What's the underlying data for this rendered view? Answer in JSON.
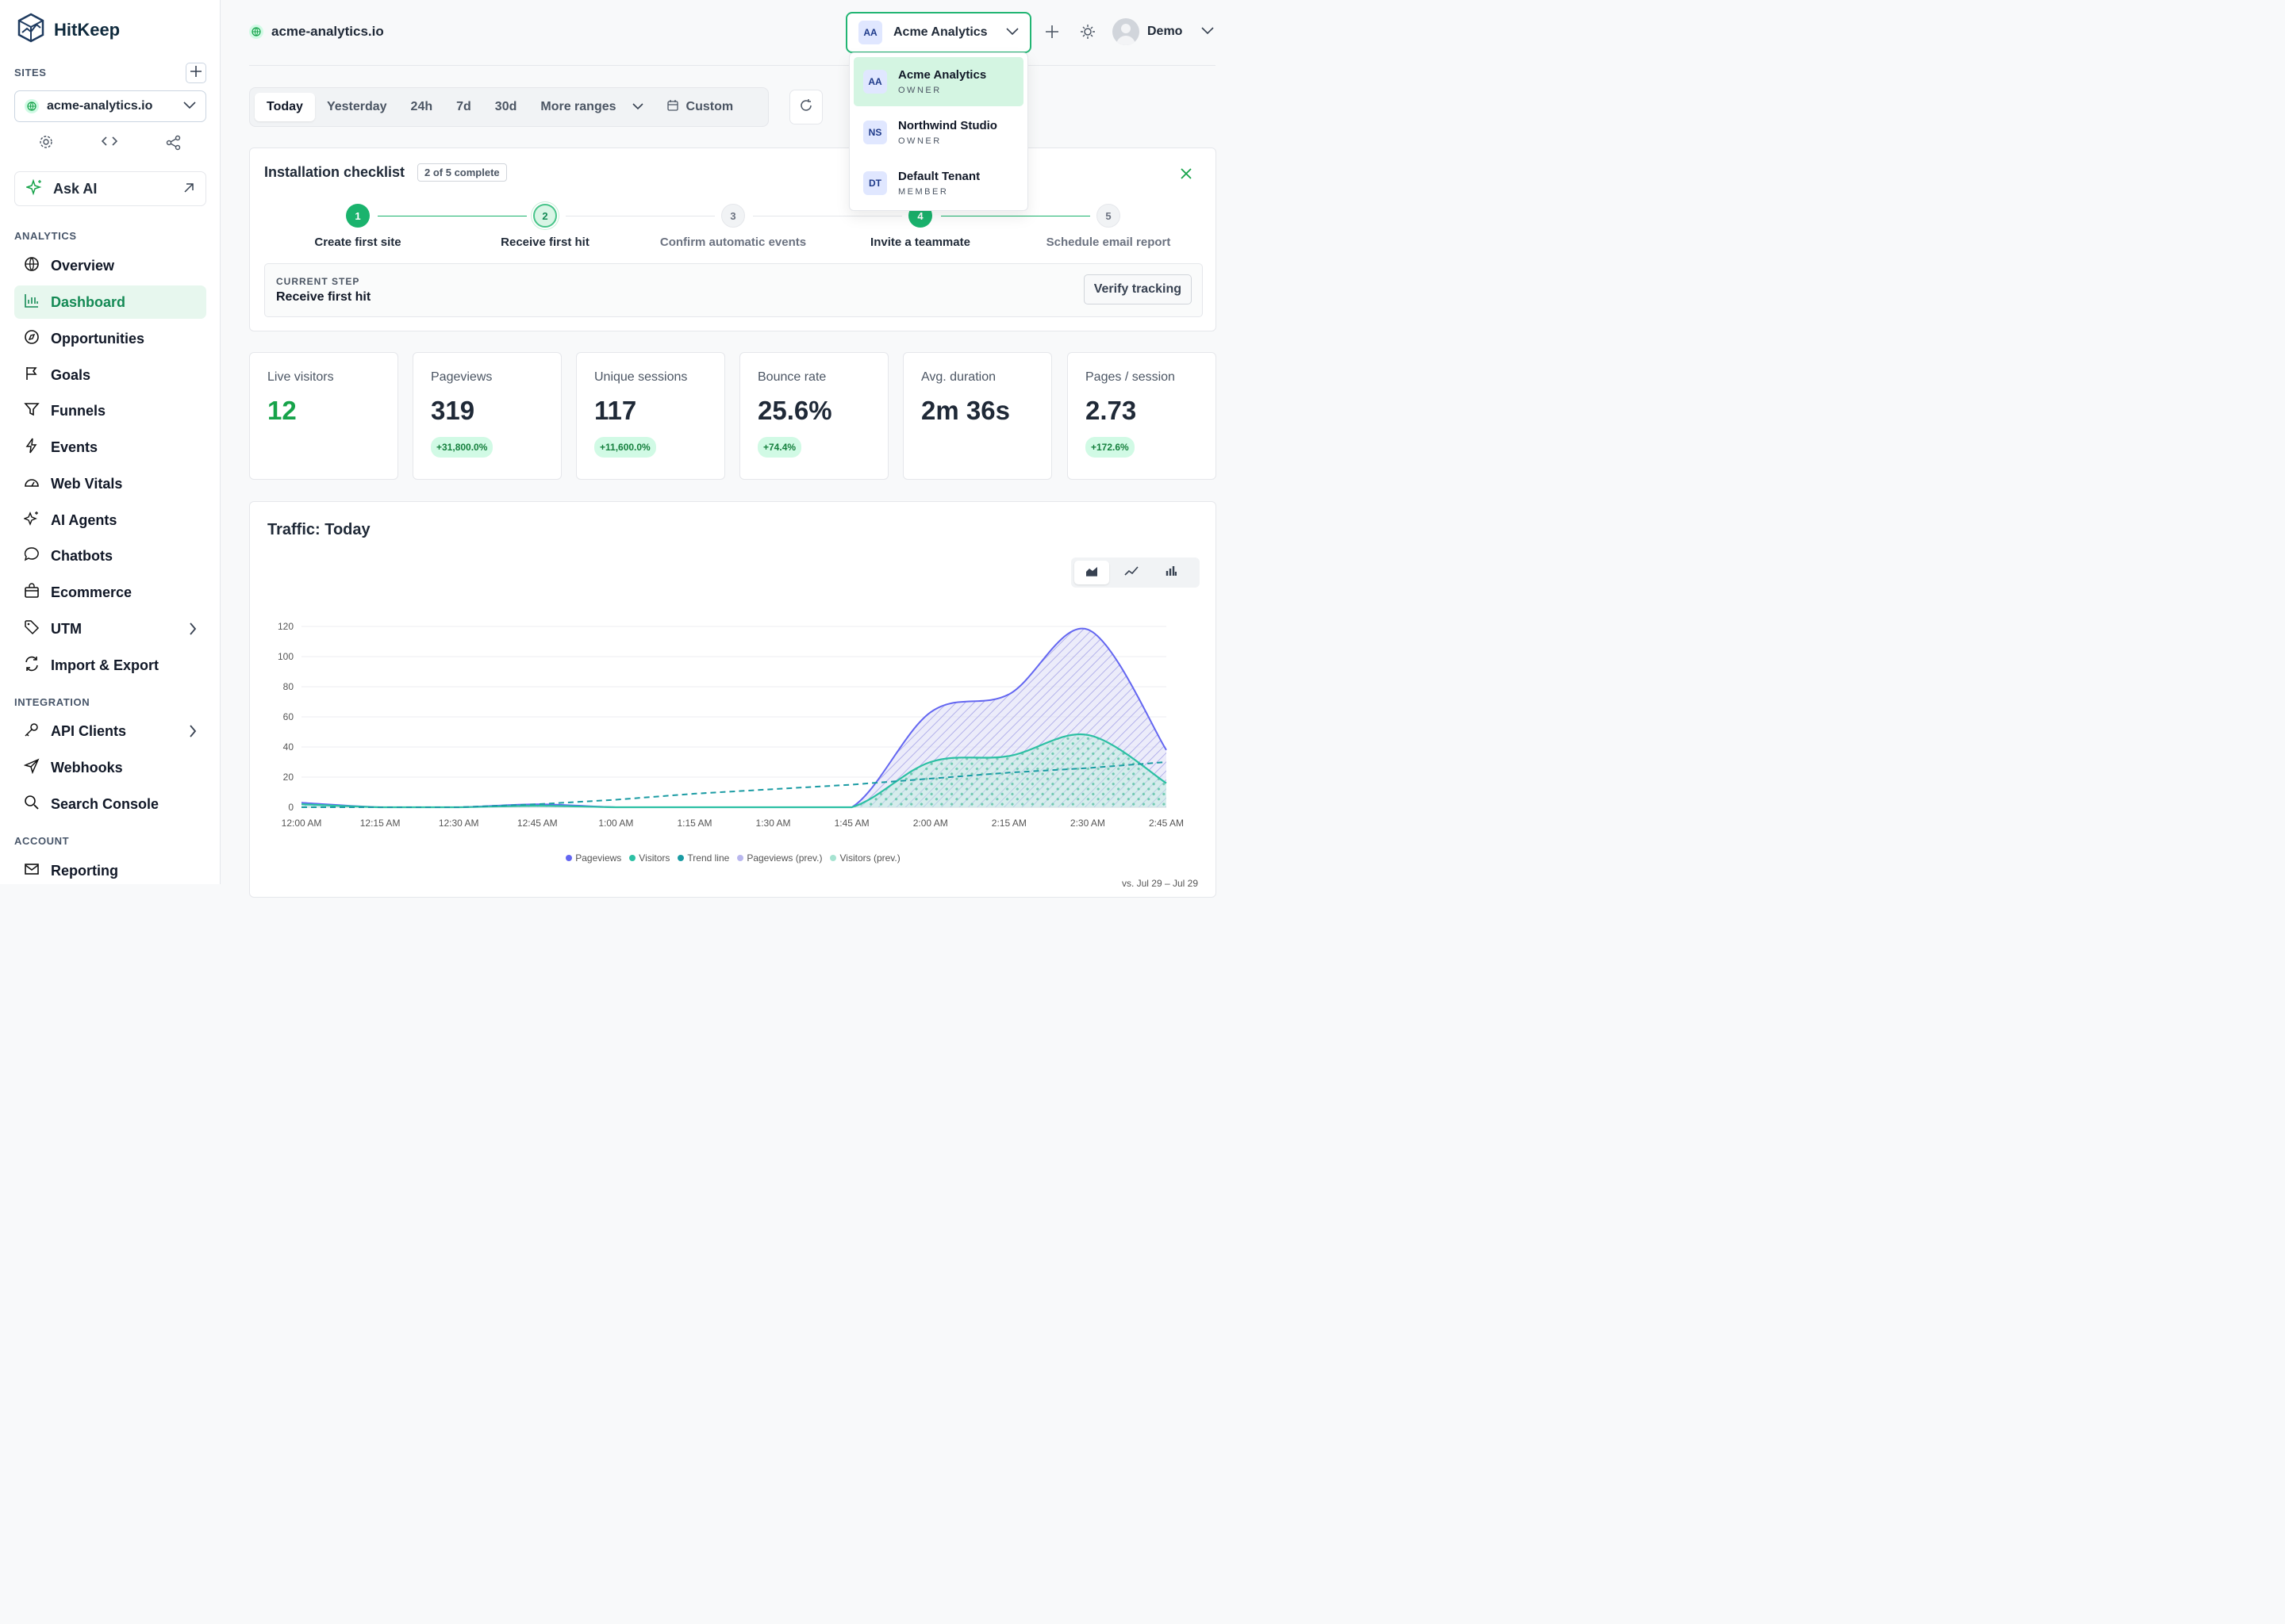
{
  "brand": {
    "name": "HitKeep"
  },
  "sidebar": {
    "sites_label": "SITES",
    "site": "acme-analytics.io",
    "ask_ai": "Ask AI",
    "analytics_label": "ANALYTICS",
    "analytics_items": [
      {
        "label": "Overview",
        "icon": "globe-icon"
      },
      {
        "label": "Dashboard",
        "icon": "bar-chart-icon",
        "active": true
      },
      {
        "label": "Opportunities",
        "icon": "compass-icon"
      },
      {
        "label": "Goals",
        "icon": "flag-icon"
      },
      {
        "label": "Funnels",
        "icon": "funnel-icon"
      },
      {
        "label": "Events",
        "icon": "bolt-icon"
      },
      {
        "label": "Web Vitals",
        "icon": "gauge-icon"
      },
      {
        "label": "AI Agents",
        "icon": "sparkles-icon"
      },
      {
        "label": "Chatbots",
        "icon": "chat-icon"
      },
      {
        "label": "Ecommerce",
        "icon": "bag-icon"
      },
      {
        "label": "UTM",
        "icon": "tag-icon"
      },
      {
        "label": "Import & Export",
        "icon": "sync-icon"
      }
    ],
    "integration_label": "INTEGRATION",
    "integration_items": [
      {
        "label": "API Clients",
        "icon": "key-icon"
      },
      {
        "label": "Webhooks",
        "icon": "send-icon"
      },
      {
        "label": "Search Console",
        "icon": "search-icon"
      }
    ],
    "account_label": "ACCOUNT",
    "account_items": [
      {
        "label": "Reporting",
        "icon": "mail-icon"
      }
    ]
  },
  "topbar": {
    "site": "acme-analytics.io",
    "tenant": {
      "initials": "AA",
      "name": "Acme Analytics"
    },
    "user": "Demo"
  },
  "tenant_menu": [
    {
      "initials": "AA",
      "name": "Acme Analytics",
      "role": "OWNER",
      "selected": true
    },
    {
      "initials": "NS",
      "name": "Northwind Studio",
      "role": "OWNER"
    },
    {
      "initials": "DT",
      "name": "Default Tenant",
      "role": "MEMBER"
    }
  ],
  "ranges": {
    "options": [
      "Today",
      "Yesterday",
      "24h",
      "7d",
      "30d"
    ],
    "active": "Today",
    "more": "More ranges",
    "custom": "Custom"
  },
  "checklist": {
    "title": "Installation checklist",
    "progress": "2 of 5 complete",
    "steps": [
      {
        "num": "1",
        "label": "Create first site",
        "state": "done"
      },
      {
        "num": "2",
        "label": "Receive first hit",
        "state": "current"
      },
      {
        "num": "3",
        "label": "Confirm automatic events",
        "state": "todo"
      },
      {
        "num": "4",
        "label": "Invite a teammate",
        "state": "done"
      },
      {
        "num": "5",
        "label": "Schedule email report",
        "state": "todo"
      }
    ],
    "current_label": "CURRENT STEP",
    "current_value": "Receive first hit",
    "verify": "Verify tracking"
  },
  "stats": [
    {
      "label": "Live visitors",
      "value": "12",
      "delta": ""
    },
    {
      "label": "Pageviews",
      "value": "319",
      "delta": "+31,800.0%"
    },
    {
      "label": "Unique sessions",
      "value": "117",
      "delta": "+11,600.0%"
    },
    {
      "label": "Bounce rate",
      "value": "25.6%",
      "delta": "+74.4%"
    },
    {
      "label": "Avg. duration",
      "value": "2m 36s",
      "delta": ""
    },
    {
      "label": "Pages / session",
      "value": "2.73",
      "delta": "+172.6%"
    }
  ],
  "traffic": {
    "title": "Traffic: Today",
    "compare": "vs. Jul 29 – Jul 29"
  },
  "chart_data": {
    "type": "area",
    "x": [
      "12:00 AM",
      "12:15 AM",
      "12:30 AM",
      "12:45 AM",
      "1:00 AM",
      "1:15 AM",
      "1:30 AM",
      "1:45 AM",
      "2:00 AM",
      "2:15 AM",
      "2:30 AM",
      "2:45 AM"
    ],
    "ylim": [
      0,
      120
    ],
    "yticks": [
      0,
      20,
      40,
      60,
      80,
      100,
      120
    ],
    "series": [
      {
        "name": "Pageviews",
        "color": "#6366f1",
        "values": [
          3,
          0,
          0,
          2,
          0,
          0,
          0,
          0,
          63,
          75,
          118,
          38
        ]
      },
      {
        "name": "Visitors",
        "color": "#2cc0a4",
        "values": [
          2,
          0,
          0,
          1,
          0,
          0,
          0,
          0,
          30,
          34,
          48,
          16
        ]
      },
      {
        "name": "Trend line",
        "color": "#1a9ba3",
        "values": [
          0,
          0,
          0,
          2,
          5,
          9,
          12,
          15,
          19,
          23,
          26,
          30
        ]
      },
      {
        "name": "Pageviews (prev.)",
        "color": "#b9b7ee",
        "values": [
          0,
          0,
          0,
          0,
          0,
          0,
          0,
          0,
          0,
          0,
          0,
          0
        ]
      },
      {
        "name": "Visitors (prev.)",
        "color": "#a6e3d1",
        "values": [
          0,
          0,
          0,
          0,
          0,
          0,
          0,
          0,
          0,
          0,
          0,
          0
        ]
      }
    ],
    "legend_position": "bottom"
  }
}
